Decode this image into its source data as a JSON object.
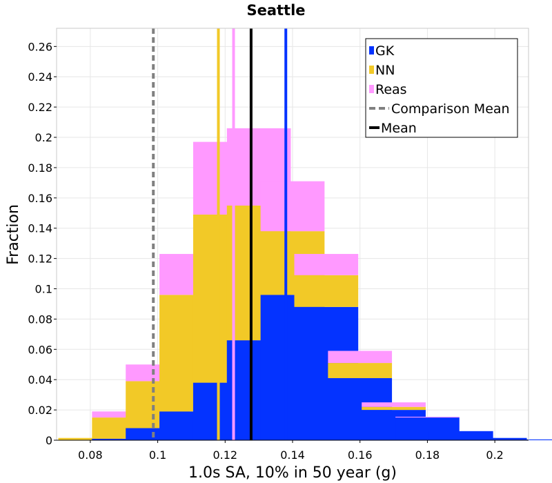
{
  "chart_data": {
    "type": "bar",
    "stacked": true,
    "title": "Seattle",
    "xlabel": "1.0s SA, 10% in 50 year (g)",
    "ylabel": "Fraction",
    "xlim": [
      0.07,
      0.21
    ],
    "ylim": [
      0,
      0.272
    ],
    "xticks": [
      0.08,
      0.1,
      0.12,
      0.14,
      0.16,
      0.18,
      0.2
    ],
    "xtick_labels": [
      "0.08",
      "0.1",
      "0.12",
      "0.14",
      "0.16",
      "0.18",
      "0.2"
    ],
    "yticks": [
      0,
      0.02,
      0.04,
      0.06,
      0.08,
      0.1,
      0.12,
      0.14,
      0.16,
      0.18,
      0.2,
      0.22,
      0.24,
      0.26
    ],
    "ytick_labels": [
      "0",
      "0.02",
      "0.04",
      "0.06",
      "0.08",
      "0.1",
      "0.12",
      "0.14",
      "0.16",
      "0.18",
      "0.2",
      "0.22",
      "0.24",
      "0.26"
    ],
    "grid": true,
    "legend_position": "top-right",
    "bin_width": 0.02,
    "bin_starts": [
      0.07,
      0.08,
      0.09,
      0.1,
      0.11,
      0.12,
      0.13,
      0.14,
      0.15,
      0.16,
      0.17,
      0.18,
      0.19,
      0.2
    ],
    "series": [
      {
        "name": "GK",
        "color": "#0433ff",
        "values": [
          0.0,
          0.001,
          0.008,
          0.019,
          0.038,
          0.066,
          0.096,
          0.088,
          0.041,
          0.02,
          0.015,
          0.006,
          0.0015,
          0.0005
        ]
      },
      {
        "name": "NN",
        "color": "#f2c927",
        "values": [
          0.0015,
          0.014,
          0.031,
          0.077,
          0.111,
          0.089,
          0.042,
          0.021,
          0.01,
          0.002,
          0.0,
          0.0,
          0.0,
          0.0
        ]
      },
      {
        "name": "Reas",
        "color": "#ff99ff",
        "values": [
          0.0,
          0.004,
          0.011,
          0.027,
          0.048,
          0.051,
          0.033,
          0.014,
          0.008,
          0.003,
          0.0005,
          0.0,
          0.0,
          0.0
        ]
      }
    ],
    "vlines": [
      {
        "name": "GK",
        "x": 0.138,
        "color": "#0433ff",
        "style": "solid"
      },
      {
        "name": "NN",
        "x": 0.118,
        "color": "#f2c927",
        "style": "solid"
      },
      {
        "name": "Reas",
        "x": 0.1225,
        "color": "#ff99ff",
        "style": "solid"
      },
      {
        "name": "Mean",
        "x": 0.1277,
        "color": "#000000",
        "style": "solid"
      },
      {
        "name": "Comparison Mean",
        "x": 0.0987,
        "color": "#808080",
        "style": "dashed"
      }
    ],
    "legend": [
      {
        "label": "GK",
        "kind": "patch",
        "color": "#0433ff"
      },
      {
        "label": "NN",
        "kind": "patch",
        "color": "#f2c927"
      },
      {
        "label": "Reas",
        "kind": "patch",
        "color": "#ff99ff"
      },
      {
        "label": "Comparison Mean",
        "kind": "dashed",
        "color": "#808080"
      },
      {
        "label": "Mean",
        "kind": "line",
        "color": "#000000"
      }
    ]
  }
}
